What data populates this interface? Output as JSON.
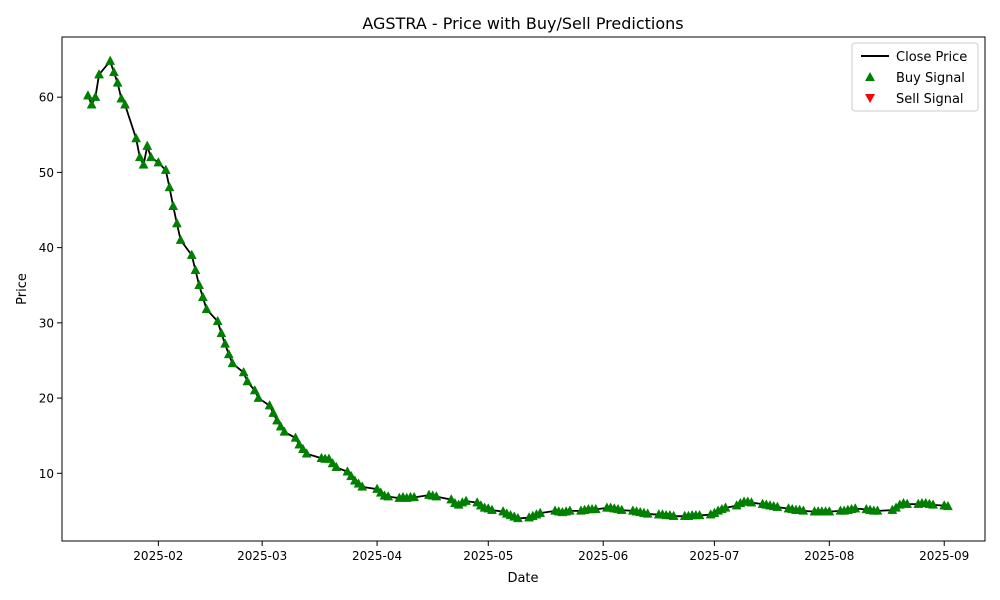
{
  "chart_data": {
    "type": "line",
    "title": "AGSTRA - Price with Buy/Sell Predictions",
    "xlabel": "Date",
    "ylabel": "Price",
    "x_range": [
      "2025-01-06",
      "2025-09-12"
    ],
    "ylim": [
      1,
      68
    ],
    "x_ticks": [
      {
        "date": "2025-02-01",
        "label": "2025-02"
      },
      {
        "date": "2025-03-01",
        "label": "2025-03"
      },
      {
        "date": "2025-04-01",
        "label": "2025-04"
      },
      {
        "date": "2025-05-01",
        "label": "2025-05"
      },
      {
        "date": "2025-06-01",
        "label": "2025-06"
      },
      {
        "date": "2025-07-01",
        "label": "2025-07"
      },
      {
        "date": "2025-08-01",
        "label": "2025-08"
      },
      {
        "date": "2025-09-01",
        "label": "2025-09"
      }
    ],
    "y_ticks": [
      10,
      20,
      30,
      40,
      50,
      60
    ],
    "grid": false,
    "legend": {
      "position": "top-right",
      "entries": [
        {
          "label": "Close Price",
          "marker": "line",
          "color": "#000000"
        },
        {
          "label": "Buy Signal",
          "marker": "triangle-up",
          "color": "#008000"
        },
        {
          "label": "Sell Signal",
          "marker": "triangle-down",
          "color": "#ff0000"
        }
      ]
    },
    "series": [
      {
        "name": "Close Price",
        "kind": "line",
        "color": "#000000",
        "points": [
          [
            "2025-01-13",
            60.2
          ],
          [
            "2025-01-14",
            59.0
          ],
          [
            "2025-01-15",
            60.0
          ],
          [
            "2025-01-16",
            63.0
          ],
          [
            "2025-01-19",
            64.8
          ],
          [
            "2025-01-20",
            63.3
          ],
          [
            "2025-01-21",
            61.9
          ],
          [
            "2025-01-22",
            59.8
          ],
          [
            "2025-01-23",
            59.0
          ],
          [
            "2025-01-26",
            54.5
          ],
          [
            "2025-01-27",
            52.0
          ],
          [
            "2025-01-28",
            51.0
          ],
          [
            "2025-01-29",
            53.5
          ],
          [
            "2025-01-30",
            52.0
          ],
          [
            "2025-02-01",
            51.3
          ],
          [
            "2025-02-03",
            50.3
          ],
          [
            "2025-02-04",
            48.0
          ],
          [
            "2025-02-05",
            45.5
          ],
          [
            "2025-02-06",
            43.2
          ],
          [
            "2025-02-07",
            41.0
          ],
          [
            "2025-02-10",
            39.0
          ],
          [
            "2025-02-11",
            37.0
          ],
          [
            "2025-02-12",
            35.0
          ],
          [
            "2025-02-13",
            33.4
          ],
          [
            "2025-02-14",
            31.8
          ],
          [
            "2025-02-17",
            30.2
          ],
          [
            "2025-02-18",
            28.6
          ],
          [
            "2025-02-19",
            27.2
          ],
          [
            "2025-02-20",
            25.8
          ],
          [
            "2025-02-21",
            24.6
          ],
          [
            "2025-02-24",
            23.4
          ],
          [
            "2025-02-25",
            22.2
          ],
          [
            "2025-02-27",
            21.0
          ],
          [
            "2025-02-28",
            20.0
          ],
          [
            "2025-03-03",
            19.0
          ],
          [
            "2025-03-04",
            18.0
          ],
          [
            "2025-03-05",
            17.0
          ],
          [
            "2025-03-06",
            16.2
          ],
          [
            "2025-03-07",
            15.5
          ],
          [
            "2025-03-10",
            14.7
          ],
          [
            "2025-03-11",
            13.8
          ],
          [
            "2025-03-12",
            13.2
          ],
          [
            "2025-03-13",
            12.6
          ],
          [
            "2025-03-17",
            12.0
          ],
          [
            "2025-03-18",
            11.9
          ],
          [
            "2025-03-19",
            11.9
          ],
          [
            "2025-03-20",
            11.3
          ],
          [
            "2025-03-21",
            10.8
          ],
          [
            "2025-03-24",
            10.2
          ],
          [
            "2025-03-25",
            9.6
          ],
          [
            "2025-03-26",
            9.0
          ],
          [
            "2025-03-27",
            8.6
          ],
          [
            "2025-03-28",
            8.2
          ],
          [
            "2025-04-01",
            7.9
          ],
          [
            "2025-04-02",
            7.4
          ],
          [
            "2025-04-03",
            7.0
          ],
          [
            "2025-04-04",
            6.9
          ],
          [
            "2025-04-07",
            6.7
          ],
          [
            "2025-04-08",
            6.8
          ],
          [
            "2025-04-09",
            6.7
          ],
          [
            "2025-04-10",
            6.8
          ],
          [
            "2025-04-11",
            6.8
          ],
          [
            "2025-04-15",
            7.1
          ],
          [
            "2025-04-16",
            7.0
          ],
          [
            "2025-04-17",
            6.9
          ],
          [
            "2025-04-21",
            6.5
          ],
          [
            "2025-04-22",
            6.0
          ],
          [
            "2025-04-23",
            5.8
          ],
          [
            "2025-04-24",
            6.1
          ],
          [
            "2025-04-25",
            6.3
          ],
          [
            "2025-04-28",
            6.1
          ],
          [
            "2025-04-29",
            5.7
          ],
          [
            "2025-04-30",
            5.4
          ],
          [
            "2025-05-01",
            5.3
          ],
          [
            "2025-05-02",
            5.1
          ],
          [
            "2025-05-05",
            4.9
          ],
          [
            "2025-05-06",
            4.6
          ],
          [
            "2025-05-07",
            4.4
          ],
          [
            "2025-05-08",
            4.2
          ],
          [
            "2025-05-09",
            4.0
          ],
          [
            "2025-05-12",
            4.1
          ],
          [
            "2025-05-13",
            4.3
          ],
          [
            "2025-05-14",
            4.5
          ],
          [
            "2025-05-15",
            4.7
          ],
          [
            "2025-05-19",
            5.0
          ],
          [
            "2025-05-20",
            4.9
          ],
          [
            "2025-05-21",
            4.8
          ],
          [
            "2025-05-22",
            4.9
          ],
          [
            "2025-05-23",
            5.0
          ],
          [
            "2025-05-26",
            5.0
          ],
          [
            "2025-05-27",
            5.1
          ],
          [
            "2025-05-28",
            5.2
          ],
          [
            "2025-05-29",
            5.2
          ],
          [
            "2025-05-30",
            5.2
          ],
          [
            "2025-06-02",
            5.4
          ],
          [
            "2025-06-03",
            5.4
          ],
          [
            "2025-06-04",
            5.3
          ],
          [
            "2025-06-05",
            5.2
          ],
          [
            "2025-06-06",
            5.1
          ],
          [
            "2025-06-09",
            5.0
          ],
          [
            "2025-06-10",
            4.9
          ],
          [
            "2025-06-11",
            4.8
          ],
          [
            "2025-06-12",
            4.7
          ],
          [
            "2025-06-13",
            4.6
          ],
          [
            "2025-06-16",
            4.5
          ],
          [
            "2025-06-17",
            4.5
          ],
          [
            "2025-06-18",
            4.4
          ],
          [
            "2025-06-19",
            4.4
          ],
          [
            "2025-06-20",
            4.3
          ],
          [
            "2025-06-23",
            4.3
          ],
          [
            "2025-06-24",
            4.3
          ],
          [
            "2025-06-25",
            4.4
          ],
          [
            "2025-06-26",
            4.4
          ],
          [
            "2025-06-27",
            4.4
          ],
          [
            "2025-06-30",
            4.5
          ],
          [
            "2025-07-01",
            4.7
          ],
          [
            "2025-07-02",
            5.0
          ],
          [
            "2025-07-03",
            5.2
          ],
          [
            "2025-07-04",
            5.4
          ],
          [
            "2025-07-07",
            5.7
          ],
          [
            "2025-07-08",
            6.0
          ],
          [
            "2025-07-09",
            6.2
          ],
          [
            "2025-07-10",
            6.2
          ],
          [
            "2025-07-11",
            6.1
          ],
          [
            "2025-07-14",
            5.9
          ],
          [
            "2025-07-15",
            5.8
          ],
          [
            "2025-07-16",
            5.7
          ],
          [
            "2025-07-17",
            5.6
          ],
          [
            "2025-07-18",
            5.5
          ],
          [
            "2025-07-21",
            5.3
          ],
          [
            "2025-07-22",
            5.2
          ],
          [
            "2025-07-23",
            5.1
          ],
          [
            "2025-07-24",
            5.1
          ],
          [
            "2025-07-25",
            5.0
          ],
          [
            "2025-07-28",
            4.9
          ],
          [
            "2025-07-29",
            4.9
          ],
          [
            "2025-07-30",
            4.9
          ],
          [
            "2025-07-31",
            4.9
          ],
          [
            "2025-08-01",
            4.9
          ],
          [
            "2025-08-04",
            5.0
          ],
          [
            "2025-08-05",
            5.0
          ],
          [
            "2025-08-06",
            5.1
          ],
          [
            "2025-08-07",
            5.2
          ],
          [
            "2025-08-08",
            5.3
          ],
          [
            "2025-08-11",
            5.2
          ],
          [
            "2025-08-12",
            5.1
          ],
          [
            "2025-08-13",
            5.0
          ],
          [
            "2025-08-14",
            5.0
          ],
          [
            "2025-08-18",
            5.1
          ],
          [
            "2025-08-19",
            5.4
          ],
          [
            "2025-08-20",
            5.8
          ],
          [
            "2025-08-21",
            6.0
          ],
          [
            "2025-08-22",
            5.9
          ],
          [
            "2025-08-25",
            5.9
          ],
          [
            "2025-08-26",
            6.0
          ],
          [
            "2025-08-27",
            6.0
          ],
          [
            "2025-08-28",
            5.9
          ],
          [
            "2025-08-29",
            5.8
          ],
          [
            "2025-09-01",
            5.7
          ],
          [
            "2025-09-02",
            5.6
          ]
        ]
      },
      {
        "name": "Buy Signal",
        "kind": "markers",
        "marker": "triangle-up",
        "color": "#008000",
        "points": "same as Close Price"
      },
      {
        "name": "Sell Signal",
        "kind": "markers",
        "marker": "triangle-down",
        "color": "#ff0000",
        "points": []
      }
    ]
  }
}
